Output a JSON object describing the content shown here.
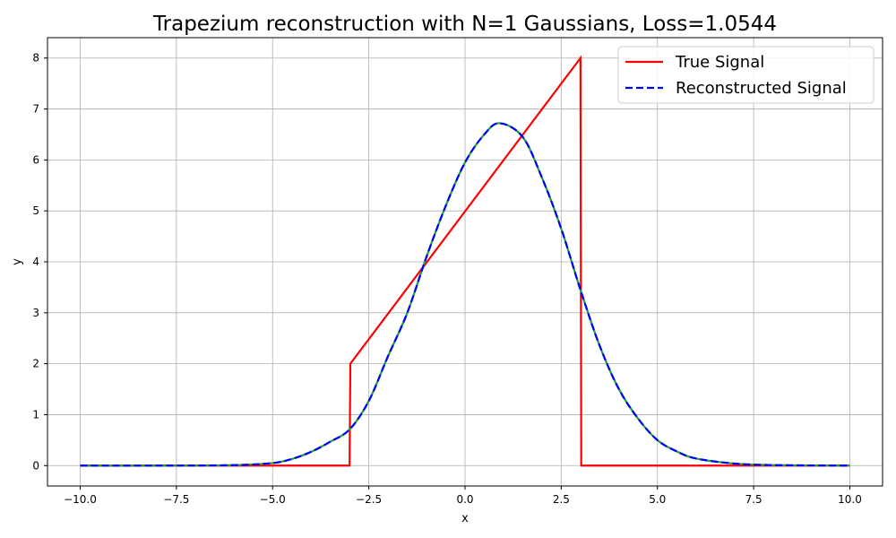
{
  "chart_data": {
    "type": "line",
    "title": "Trapezium reconstruction with N=1 Gaussians, Loss=1.0544",
    "xlabel": "x",
    "ylabel": "y",
    "xlim": [
      -10.85,
      10.85
    ],
    "ylim": [
      -0.4,
      8.4
    ],
    "xticks": [
      -10,
      -7.5,
      -5,
      -2.5,
      0,
      2.5,
      5,
      7.5,
      10
    ],
    "xtick_labels": [
      "−10.0",
      "−7.5",
      "−5.0",
      "−2.5",
      "0.0",
      "2.5",
      "5.0",
      "7.5",
      "10.0"
    ],
    "yticks": [
      0,
      1,
      2,
      3,
      4,
      5,
      6,
      7,
      8
    ],
    "ytick_labels": [
      "0",
      "1",
      "2",
      "3",
      "4",
      "5",
      "6",
      "7",
      "8"
    ],
    "grid": true,
    "legend_position": "top-right",
    "series": [
      {
        "name": "True Signal",
        "color": "#ff0000",
        "style": "solid",
        "x": [
          -10,
          -3.0,
          -2.98,
          3.0,
          3.02,
          10
        ],
        "y": [
          0,
          0,
          2,
          8,
          0,
          0
        ]
      },
      {
        "name": "Reconstructed Signal",
        "color": "#0000ff",
        "overlay_color": "#1f9e3a",
        "style": "dashed",
        "x": [
          -10,
          -8,
          -6,
          -5,
          -4.5,
          -4,
          -3.5,
          -3,
          -2.5,
          -2,
          -1.5,
          -1,
          -0.5,
          0,
          0.5,
          0.9,
          1.5,
          2,
          2.5,
          3,
          3.5,
          4,
          4.5,
          5,
          5.5,
          6,
          7,
          8,
          10
        ],
        "y": [
          0,
          0,
          0.01,
          0.05,
          0.13,
          0.27,
          0.47,
          0.71,
          1.27,
          2.15,
          3.0,
          4.1,
          5.1,
          5.95,
          6.5,
          6.72,
          6.45,
          5.65,
          4.65,
          3.45,
          2.35,
          1.5,
          0.92,
          0.5,
          0.28,
          0.14,
          0.04,
          0.01,
          0
        ]
      }
    ]
  }
}
